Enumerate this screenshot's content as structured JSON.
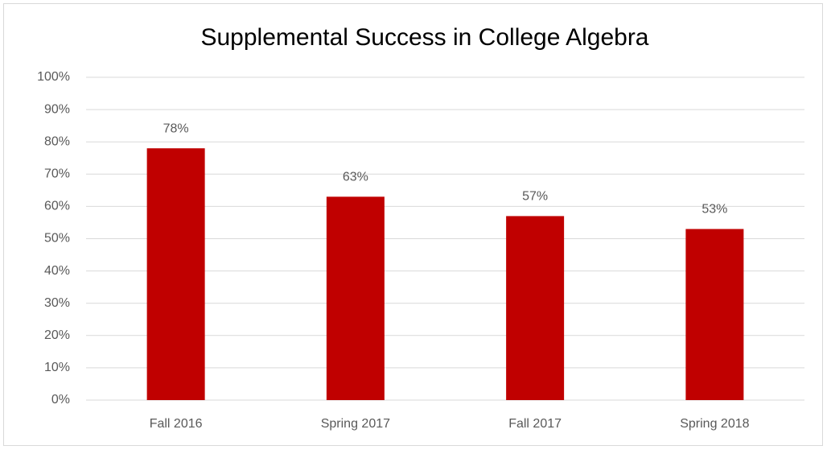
{
  "chart_data": {
    "type": "bar",
    "title": "Supplemental Success in College Algebra",
    "categories": [
      "Fall 2016",
      "Spring 2017",
      "Fall 2017",
      "Spring 2018"
    ],
    "values": [
      78,
      63,
      57,
      53
    ],
    "value_labels": [
      "78%",
      "63%",
      "57%",
      "53%"
    ],
    "color": "#c00000",
    "ylim": [
      0,
      100
    ],
    "yticks": [
      {
        "value": 0,
        "label": "0%"
      },
      {
        "value": 10,
        "label": "10%"
      },
      {
        "value": 20,
        "label": "20%"
      },
      {
        "value": 30,
        "label": "30%"
      },
      {
        "value": 40,
        "label": "40%"
      },
      {
        "value": 50,
        "label": "50%"
      },
      {
        "value": 60,
        "label": "60%"
      },
      {
        "value": 70,
        "label": "70%"
      },
      {
        "value": 80,
        "label": "80%"
      },
      {
        "value": 90,
        "label": "90%"
      },
      {
        "value": 100,
        "label": "100%"
      }
    ],
    "grid": true
  }
}
